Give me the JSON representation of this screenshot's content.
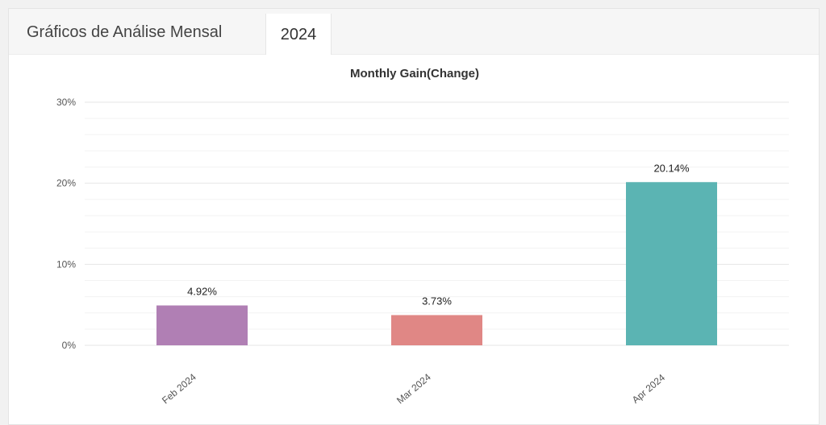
{
  "header": {
    "title": "Gráficos de Análise Mensal",
    "active_tab": "2024"
  },
  "chart_data": {
    "type": "bar",
    "title": "Monthly Gain(Change)",
    "categories": [
      "Feb 2024",
      "Mar 2024",
      "Apr 2024"
    ],
    "values": [
      4.92,
      3.73,
      20.14
    ],
    "data_labels": [
      "4.92%",
      "3.73%",
      "20.14%"
    ],
    "colors": [
      "#b07fb4",
      "#e08785",
      "#5bb4b3"
    ],
    "ylim": [
      0,
      30
    ],
    "yticks": [
      0,
      10,
      20,
      30
    ],
    "ytick_labels": [
      "0%",
      "10%",
      "20%",
      "30%"
    ],
    "xlabel": "",
    "ylabel": "",
    "grid": true,
    "legend": "none"
  }
}
